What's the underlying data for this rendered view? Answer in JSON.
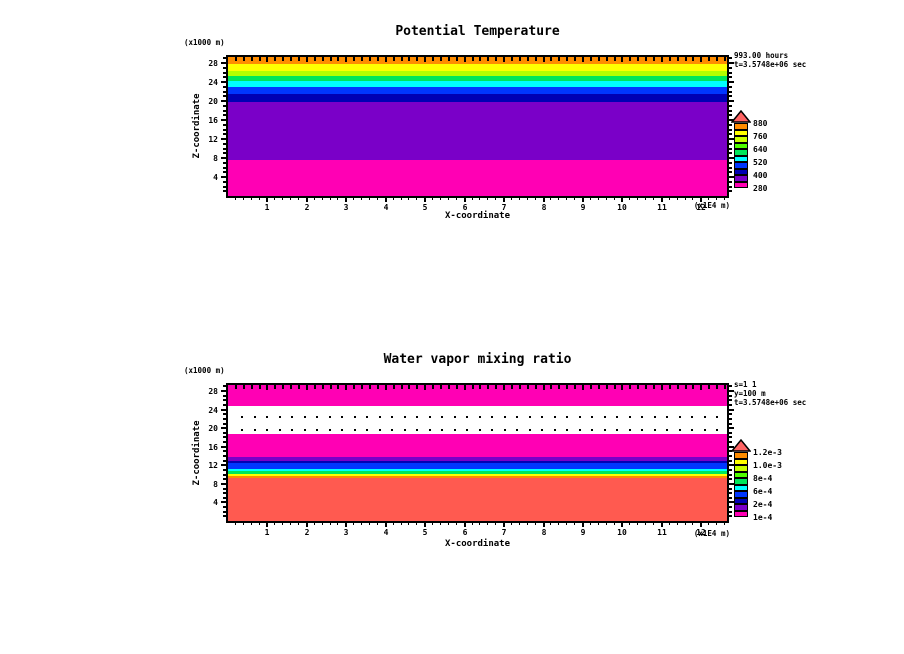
{
  "figure": {
    "background": "#ffffff",
    "text_color": "#000000"
  },
  "chart_data": [
    {
      "type": "heatmap",
      "title": "Potential Temperature",
      "xlabel": "X-coordinate",
      "ylabel": "Z-coordinate",
      "x_unit_label": "(x1E4 m)",
      "y_unit_label": "(x1000 m)",
      "annotations": [
        "993.00 hours",
        "t=3.5748e+06 sec"
      ],
      "xlim": [
        0,
        12.65
      ],
      "ylim": [
        0,
        29.3
      ],
      "x_ticks": [
        1,
        2,
        3,
        4,
        5,
        6,
        7,
        8,
        9,
        10,
        11,
        12
      ],
      "y_ticks": [
        4,
        8,
        12,
        16,
        20,
        24,
        28
      ],
      "bands_bottom_to_top": [
        {
          "color": "#ff00b4",
          "z_from": 0,
          "z_to": 7.6
        },
        {
          "color": "#7a00c8",
          "z_from": 7.6,
          "z_to": 19.8
        },
        {
          "color": "#0000b4",
          "z_from": 19.8,
          "z_to": 21.5
        },
        {
          "color": "#0036ff",
          "z_from": 21.5,
          "z_to": 22.9
        },
        {
          "color": "#00ffff",
          "z_from": 22.9,
          "z_to": 24.2
        },
        {
          "color": "#00e65a",
          "z_from": 24.2,
          "z_to": 25.3
        },
        {
          "color": "#b4ff00",
          "z_from": 25.3,
          "z_to": 26.3
        },
        {
          "color": "#ffff00",
          "z_from": 26.3,
          "z_to": 27.8
        },
        {
          "color": "#ff8c00",
          "z_from": 27.8,
          "z_to": 29.3
        }
      ],
      "colorbar": {
        "colors_bottom_to_top": [
          "#ff00b4",
          "#7a00c8",
          "#0000b4",
          "#0036ff",
          "#00ffff",
          "#00e65a",
          "#50ff00",
          "#c8ff00",
          "#ffff00",
          "#ff8c00"
        ],
        "overflow_arrow_color": "#ff6464",
        "labels_top_to_bottom": [
          "880",
          "760",
          "640",
          "520",
          "400",
          "280"
        ]
      },
      "dots_rows_z": []
    },
    {
      "type": "heatmap",
      "title": "Water vapor mixing ratio",
      "xlabel": "X-coordinate",
      "ylabel": "Z-coordinate",
      "x_unit_label": "(x1E4 m)",
      "y_unit_label": "(x1000 m)",
      "annotations": [
        "s=1 1",
        "y=100 m",
        "t=3.5748e+06 sec"
      ],
      "xlim": [
        0,
        12.65
      ],
      "ylim": [
        0,
        29.3
      ],
      "x_ticks": [
        1,
        2,
        3,
        4,
        5,
        6,
        7,
        8,
        9,
        10,
        11,
        12
      ],
      "y_ticks": [
        4,
        8,
        12,
        16,
        20,
        24,
        28
      ],
      "bands_bottom_to_top": [
        {
          "color": "#ff5a50",
          "z_from": 0,
          "z_to": 9.3
        },
        {
          "color": "#ff8c00",
          "z_from": 9.3,
          "z_to": 9.7
        },
        {
          "color": "#ffff00",
          "z_from": 9.7,
          "z_to": 10.1
        },
        {
          "color": "#00e65a",
          "z_from": 10.1,
          "z_to": 10.8
        },
        {
          "color": "#00ffff",
          "z_from": 10.8,
          "z_to": 11.2
        },
        {
          "color": "#0036ff",
          "z_from": 11.2,
          "z_to": 12.5
        },
        {
          "color": "#0000b4",
          "z_from": 12.5,
          "z_to": 12.9
        },
        {
          "color": "#7a00c8",
          "z_from": 12.9,
          "z_to": 13.8
        },
        {
          "color": "#ff00b4",
          "z_from": 13.8,
          "z_to": 18.7
        },
        {
          "color": "#ffffff",
          "z_from": 18.7,
          "z_to": 24.8
        },
        {
          "color": "#ff00b4",
          "z_from": 24.8,
          "z_to": 29.3
        }
      ],
      "colorbar": {
        "colors_bottom_to_top": [
          "#ff00b4",
          "#7a00c8",
          "#0000b4",
          "#0036ff",
          "#00ffff",
          "#00e65a",
          "#50ff00",
          "#c8ff00",
          "#ffff00",
          "#ff8c00"
        ],
        "overflow_arrow_color": "#ff6464",
        "labels_top_to_bottom": [
          "1.2e-3",
          "1.0e-3",
          "8e-4",
          "6e-4",
          "2e-4",
          "1e-4"
        ]
      },
      "dots_rows_z": [
        22.6,
        19.8
      ]
    }
  ]
}
